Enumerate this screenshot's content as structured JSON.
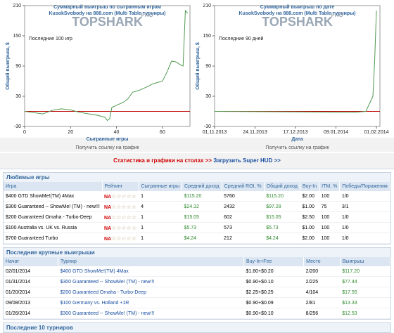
{
  "chart_data": [
    {
      "type": "line",
      "title": "Суммарный выигрыш по сыгранным играм",
      "subtitle": "KusokSvobody на 888.com (Multi Table турниры)",
      "watermark": "TOPSHARK",
      "watermark_badge": "PRO",
      "annotation": "Последние 100 игр",
      "ylabel": "Общий выигрыш, $",
      "xlabel": "Сыгранные игры",
      "link": "Получить ссылку на график",
      "x": [
        0,
        3,
        8,
        12,
        16,
        20,
        24,
        28,
        32,
        35,
        36,
        37,
        38,
        40,
        43,
        45,
        47,
        50,
        53,
        56,
        60,
        62,
        64,
        66,
        68,
        69,
        70,
        71
      ],
      "series": [
        {
          "name": "Общий выигрыш",
          "color": "#4f9a4f",
          "values": [
            0,
            -2,
            -5,
            2,
            5,
            3,
            -2,
            -5,
            -8,
            -12,
            -18,
            -15,
            8,
            12,
            18,
            25,
            38,
            42,
            48,
            55,
            60,
            78,
            100,
            98,
            92,
            90,
            200,
            195
          ]
        }
      ],
      "xlim": [
        0,
        72
      ],
      "xticks": [
        0,
        20,
        40,
        60
      ],
      "ylim": [
        -30,
        210
      ],
      "yticks": [
        -30,
        30,
        90,
        150,
        210
      ],
      "baseline_color": "#c00000"
    },
    {
      "type": "line",
      "title": "Суммарный выигрыш по дате",
      "subtitle": "KusokSvobody на 888.com (Multi Table турниры)",
      "watermark": "TOPSHARK",
      "watermark_badge": "PRO",
      "annotation": "Последние 90 дней",
      "ylabel": "Общий выигрыш, $",
      "xlabel": "Дата",
      "link": "Получить ссылку на график",
      "x": [
        "01.11.2013",
        "20.01.2014",
        "26.01.2014",
        "30.01.2014",
        "31.01.2014",
        "01.02.2014"
      ],
      "series": [
        {
          "name": "Общий выигрыш",
          "color": "#4f9a4f",
          "values": [
            0,
            -2,
            0,
            30,
            100,
            200
          ]
        }
      ],
      "xlim": [
        "01.11.2013",
        "03.02.2014"
      ],
      "xticks": [
        "01.11.2013",
        "24.11.2013",
        "17.12.2013",
        "09.01.2014",
        "01.02.2014"
      ],
      "ylim": [
        -30,
        210
      ],
      "yticks": [
        -30,
        30,
        90,
        150,
        210
      ],
      "baseline_color": "#c00000"
    }
  ],
  "links": {
    "stats": "Статистика и графики на столах >>",
    "hud": "Загрузить Super HUD >>"
  },
  "favorites": {
    "title": "Любимые игры",
    "headers": [
      "Игра",
      "Рейтинг",
      "Сыгранные игры",
      "Средний доход",
      "Средний ROI, %",
      "Общий доход",
      "Buy-In",
      "ITM, %",
      "Победы/Поражения"
    ],
    "rows": [
      [
        "$400 GTD ShowMe!(TM) 4Max",
        "NA",
        "1",
        "$115.20",
        "5760",
        "$115.20",
        "$2.00",
        "100",
        "1/0"
      ],
      [
        "$300 Guaranteed -- ShowMe! (TM) - new!!!",
        "NA",
        "4",
        "$24.32",
        "2432",
        "$97.28",
        "$1.00",
        "75",
        "3/1"
      ],
      [
        "$200 Guaranteed Omaha - Turbo-Deep",
        "NA",
        "1",
        "$15.05",
        "602",
        "$15.05",
        "$2.50",
        "100",
        "1/0"
      ],
      [
        "$100 Australia vs. UK vs. Russia",
        "NA",
        "1",
        "$5.73",
        "573",
        "$5.73",
        "$1.00",
        "100",
        "1/0"
      ],
      [
        "$700 Guaranteed Turbo",
        "NA",
        "1",
        "$4.24",
        "212",
        "$4.24",
        "$2.00",
        "100",
        "1/0"
      ]
    ]
  },
  "wins": {
    "title": "Последние крупные выигрыши",
    "headers": [
      "Начат",
      "Турнир",
      "Buy-In+Fee",
      "Место",
      "Выигрыш"
    ],
    "rows": [
      [
        "02/01/2014",
        "$400 GTD ShowMe!(TM) 4Max",
        "$1.80+$0.20",
        "2/200",
        "$117.20"
      ],
      [
        "01/31/2014",
        "$300 Guaranteed -- ShowMe! (TM) - new!!!",
        "$0.90+$0.10",
        "2/225",
        "$77.44"
      ],
      [
        "01/20/2014",
        "$200 Guaranteed Omaha - Turbo-Deep",
        "$2.25+$0.25",
        "4/104",
        "$17.55"
      ],
      [
        "09/08/2013",
        "$100 Germany vs. Holland +1R",
        "$0.90+$0.09",
        "2/81",
        "$13.33"
      ],
      [
        "01/26/2014",
        "$300 Guaranteed -- ShowMe! (TM) - new!!!",
        "$0.90+$0.10",
        "8/256",
        "$12.53"
      ]
    ]
  },
  "last": {
    "title": "Последние 10 турниров"
  }
}
